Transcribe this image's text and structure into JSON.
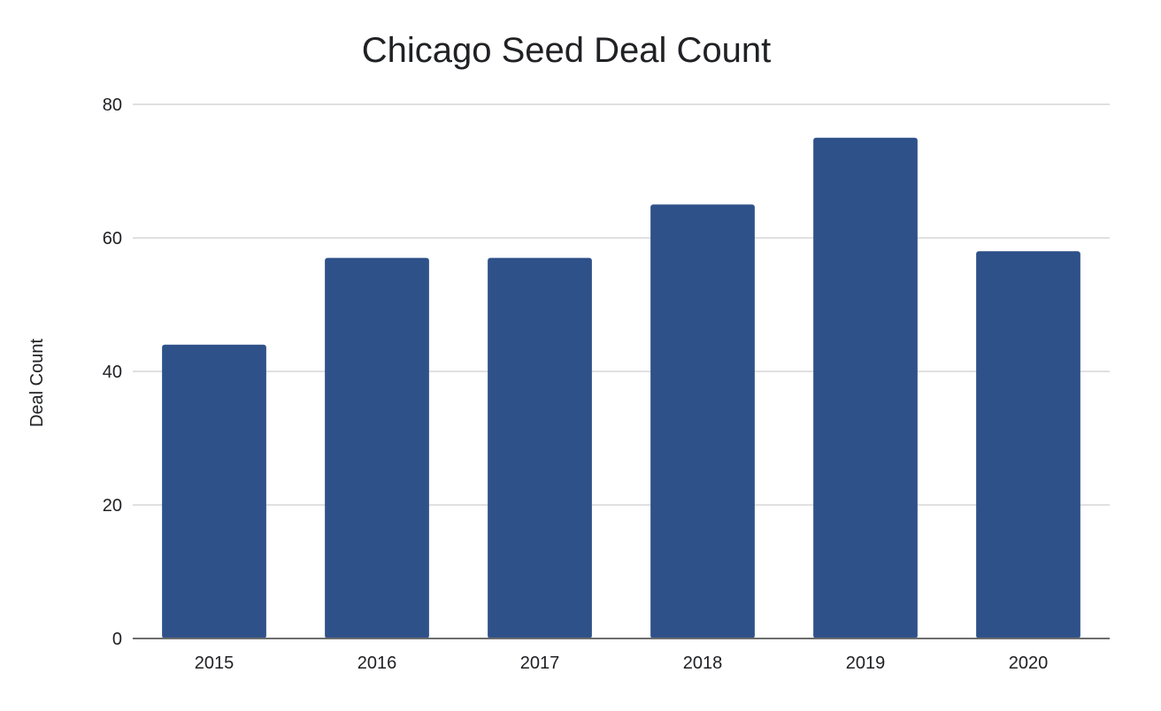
{
  "chart_data": {
    "type": "bar",
    "title": "Chicago Seed Deal Count",
    "xlabel": "",
    "ylabel": "Deal Count",
    "categories": [
      "2015",
      "2016",
      "2017",
      "2018",
      "2019",
      "2020"
    ],
    "values": [
      44,
      57,
      57,
      65,
      75,
      58
    ],
    "ylim": [
      0,
      80
    ],
    "yticks": [
      0,
      20,
      40,
      60,
      80
    ],
    "grid": true,
    "legend": "none",
    "bar_color": "#2f5189"
  }
}
